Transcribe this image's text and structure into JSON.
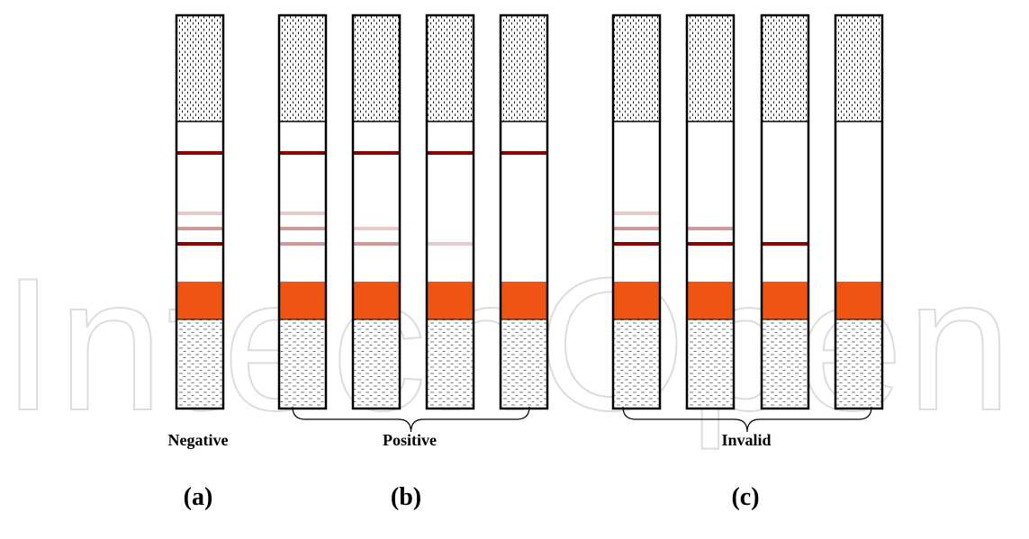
{
  "watermark": {
    "text": "IntechOpen",
    "color": "#d9d9d9"
  },
  "colors": {
    "band": "#8b0000",
    "band_faint": "#cf9a9a",
    "band_fainter": "#e8caca",
    "conjugate_pad": "#f05412",
    "outline": "#000000"
  },
  "groups": [
    {
      "name": "Negative",
      "letter": "(a)",
      "strips": [
        {
          "control": true,
          "test_lines": [
            "fainter",
            "faint",
            "band"
          ]
        }
      ]
    },
    {
      "name": "Positive",
      "letter": "(b)",
      "strips": [
        {
          "control": true,
          "test_lines": [
            "fainter",
            "faint",
            "faint"
          ]
        },
        {
          "control": true,
          "test_lines": [
            "none",
            "fainter",
            "faint"
          ]
        },
        {
          "control": true,
          "test_lines": [
            "none",
            "none",
            "fainter"
          ]
        },
        {
          "control": true,
          "test_lines": [
            "none",
            "none",
            "none"
          ]
        }
      ]
    },
    {
      "name": "Invalid",
      "letter": "(c)",
      "strips": [
        {
          "control": false,
          "test_lines": [
            "fainter",
            "faint",
            "band"
          ]
        },
        {
          "control": false,
          "test_lines": [
            "none",
            "faint",
            "band"
          ]
        },
        {
          "control": false,
          "test_lines": [
            "none",
            "none",
            "band"
          ]
        },
        {
          "control": false,
          "test_lines": [
            "none",
            "none",
            "none"
          ]
        }
      ]
    }
  ]
}
